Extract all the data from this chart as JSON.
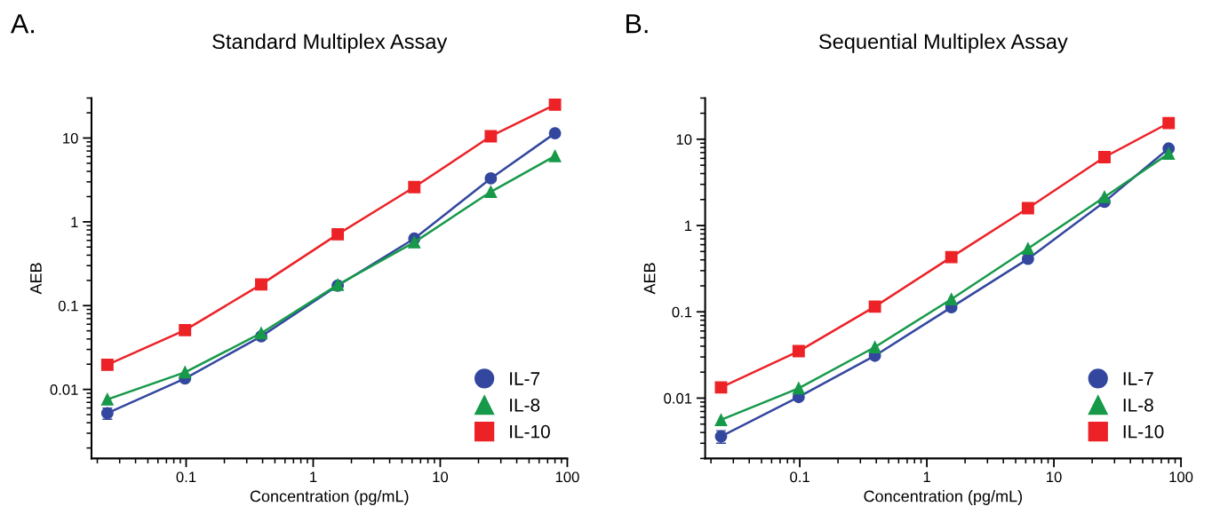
{
  "chart_data": [
    {
      "type": "line",
      "title": "Standard Multiplex Assay",
      "xlabel": "Concentration (pg/mL)",
      "ylabel": "AEB",
      "annotations": [
        "A."
      ],
      "log": "xy",
      "grid": false,
      "legend": "bottom right",
      "line_style": "solid",
      "x": [
        0.024,
        0.098,
        0.39,
        1.56,
        6.25,
        25,
        80
      ],
      "xlim": [
        0.018,
        100
      ],
      "ylim": [
        0.0015,
        30
      ],
      "xticks": [
        0.1,
        1,
        10,
        100
      ],
      "yticks": [
        0.01,
        0.1,
        1,
        10
      ],
      "series": [
        {
          "name": "IL-7",
          "color": "#33479e",
          "marker": "circle",
          "values": [
            0.0052,
            0.0135,
            0.043,
            0.173,
            0.63,
            3.3,
            11.4
          ],
          "errors": [
            0.0008,
            null,
            null,
            null,
            null,
            null,
            null
          ]
        },
        {
          "name": "IL-8",
          "color": "#17994a",
          "marker": "triangle",
          "values": [
            0.0076,
            0.016,
            0.047,
            0.177,
            0.57,
            2.28,
            6.1
          ]
        },
        {
          "name": "IL-10",
          "color": "#ec2227",
          "marker": "square",
          "values": [
            0.0197,
            0.051,
            0.179,
            0.71,
            2.6,
            10.5,
            25
          ]
        }
      ]
    },
    {
      "type": "line",
      "title": "Sequential Multiplex Assay",
      "xlabel": "Concentration (pg/mL)",
      "ylabel": "AEB",
      "annotations": [
        "B."
      ],
      "log": "xy",
      "grid": false,
      "legend": "bottom right",
      "line_style": "solid",
      "x": [
        0.024,
        0.098,
        0.39,
        1.56,
        6.25,
        25,
        80
      ],
      "xlim": [
        0.018,
        100
      ],
      "ylim": [
        0.002,
        30
      ],
      "xticks": [
        0.1,
        1,
        10,
        100
      ],
      "yticks": [
        0.01,
        0.1,
        1,
        10
      ],
      "series": [
        {
          "name": "IL-7",
          "color": "#33479e",
          "marker": "circle",
          "values": [
            0.0036,
            0.0103,
            0.031,
            0.113,
            0.41,
            1.88,
            7.8
          ],
          "errors": [
            0.0006,
            null,
            null,
            null,
            null,
            null,
            null
          ]
        },
        {
          "name": "IL-8",
          "color": "#17994a",
          "marker": "triangle",
          "values": [
            0.0056,
            0.013,
            0.039,
            0.14,
            0.54,
            2.14,
            6.8
          ]
        },
        {
          "name": "IL-10",
          "color": "#ec2227",
          "marker": "square",
          "values": [
            0.0133,
            0.035,
            0.115,
            0.43,
            1.59,
            6.2,
            15.4
          ]
        }
      ]
    }
  ]
}
